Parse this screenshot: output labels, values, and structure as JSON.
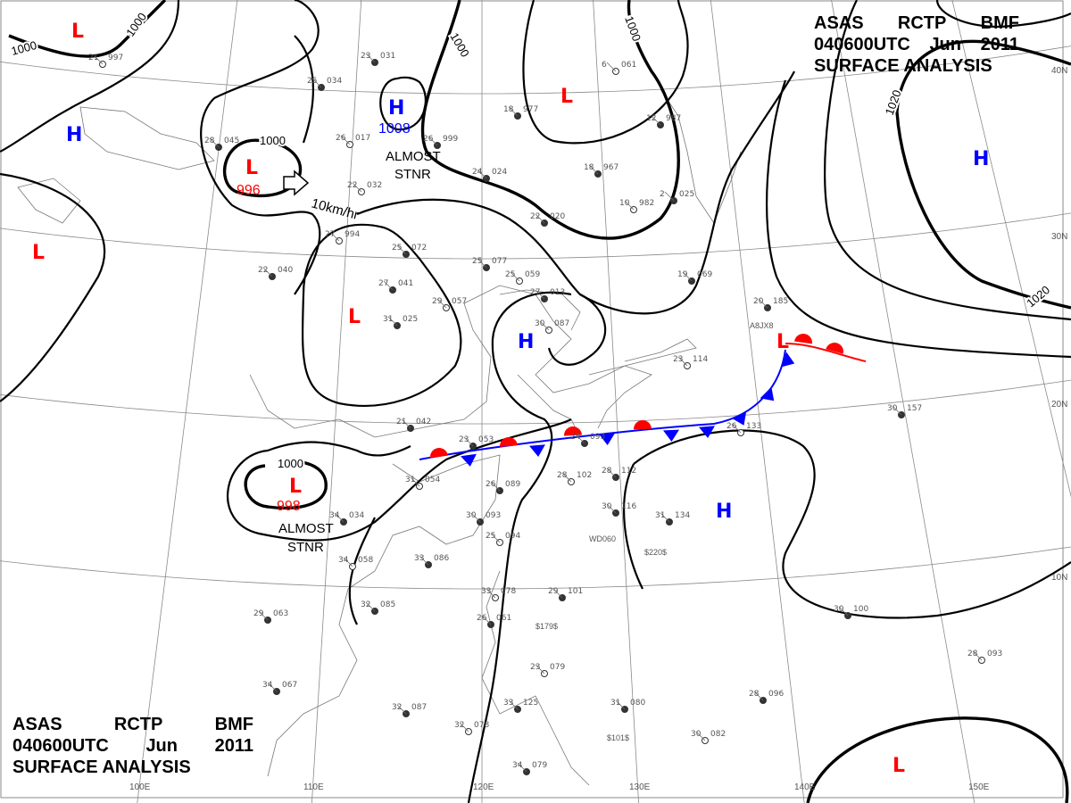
{
  "header": {
    "line1": [
      "ASAS",
      "RCTP",
      "BMF"
    ],
    "line2": [
      "040600UTC",
      "Jun",
      "2011"
    ],
    "line3": "SURFACE ANALYSIS"
  },
  "grid": {
    "latitudes": [
      "10N",
      "20N",
      "30N",
      "40N"
    ],
    "longitudes": [
      "100E",
      "110E",
      "120E",
      "130E",
      "140E",
      "150E"
    ]
  },
  "isobar_labels": [
    "1000",
    "1000",
    "1000",
    "1000",
    "1000",
    "1020",
    "1020"
  ],
  "centers": [
    {
      "type": "L",
      "color": "#ff0000"
    },
    {
      "type": "L",
      "color": "#ff0000",
      "value": "996"
    },
    {
      "type": "H",
      "color": "#0000ff"
    },
    {
      "type": "H",
      "color": "#0000ff",
      "value": "1008"
    },
    {
      "type": "L",
      "color": "#ff0000"
    },
    {
      "type": "L",
      "color": "#ff0000"
    },
    {
      "type": "L",
      "color": "#ff0000"
    },
    {
      "type": "H",
      "color": "#0000ff"
    },
    {
      "type": "H",
      "color": "#0000ff"
    },
    {
      "type": "L",
      "color": "#ff0000",
      "value": "998"
    },
    {
      "type": "L",
      "color": "#ff0000"
    },
    {
      "type": "H",
      "color": "#0000ff"
    },
    {
      "type": "L",
      "color": "#ff0000"
    }
  ],
  "annotations": {
    "almost_stnr_1": [
      "ALMOST",
      "STNR"
    ],
    "almost_stnr_2": [
      "ALMOST",
      "STNR"
    ],
    "motion": "10km/hr"
  },
  "front_colors": {
    "warm": "#ff0000",
    "cold": "#0000ff"
  },
  "special_labels": [
    "$220$",
    "$179$",
    "$101$",
    "WD060",
    "A8JX8"
  ],
  "stations": [
    {
      "t": "21",
      "p": "997"
    },
    {
      "t": "25",
      "p": "034"
    },
    {
      "t": "23",
      "p": "031"
    },
    {
      "t": "26",
      "p": "017"
    },
    {
      "t": "26",
      "p": "999"
    },
    {
      "t": "28",
      "p": "045"
    },
    {
      "t": "22",
      "p": "032"
    },
    {
      "t": "24",
      "p": "024"
    },
    {
      "t": "18",
      "p": "977"
    },
    {
      "t": "6",
      "p": "061"
    },
    {
      "t": "12",
      "p": "987"
    },
    {
      "t": "18",
      "p": "967"
    },
    {
      "t": "10",
      "p": "982"
    },
    {
      "t": "2",
      "p": "025"
    },
    {
      "t": "22",
      "p": "020"
    },
    {
      "t": "27",
      "p": "994"
    },
    {
      "t": "25",
      "p": "072"
    },
    {
      "t": "25",
      "p": "077"
    },
    {
      "t": "25",
      "p": "059"
    },
    {
      "t": "22",
      "p": "040"
    },
    {
      "t": "27",
      "p": "041"
    },
    {
      "t": "29",
      "p": "057"
    },
    {
      "t": "27",
      "p": "013"
    },
    {
      "t": "31",
      "p": "025"
    },
    {
      "t": "30",
      "p": "087"
    },
    {
      "t": "19",
      "p": "069"
    },
    {
      "t": "20",
      "p": "185"
    },
    {
      "t": "23",
      "p": "114"
    },
    {
      "t": "21",
      "p": "042"
    },
    {
      "t": "23",
      "p": "053"
    },
    {
      "t": "31",
      "p": "054"
    },
    {
      "t": "26",
      "p": "089"
    },
    {
      "t": "24",
      "p": "093"
    },
    {
      "t": "28",
      "p": "102"
    },
    {
      "t": "28",
      "p": "112"
    },
    {
      "t": "30",
      "p": "093"
    },
    {
      "t": "25",
      "p": "094"
    },
    {
      "t": "31",
      "p": "134"
    },
    {
      "t": "30",
      "p": "116"
    },
    {
      "t": "26",
      "p": "133"
    },
    {
      "t": "30",
      "p": "157"
    },
    {
      "t": "33",
      "p": "086"
    },
    {
      "t": "34",
      "p": "058"
    },
    {
      "t": "29",
      "p": "063"
    },
    {
      "t": "32",
      "p": "085"
    },
    {
      "t": "33",
      "p": "078"
    },
    {
      "t": "29",
      "p": "101"
    },
    {
      "t": "26",
      "p": "061"
    },
    {
      "t": "23",
      "p": "079"
    },
    {
      "t": "33",
      "p": "125"
    },
    {
      "t": "32",
      "p": "087"
    },
    {
      "t": "32",
      "p": "078"
    },
    {
      "t": "34",
      "p": "067"
    },
    {
      "t": "31",
      "p": "080"
    },
    {
      "t": "30",
      "p": "082"
    },
    {
      "t": "28",
      "p": "096"
    },
    {
      "t": "30",
      "p": "100"
    },
    {
      "t": "28",
      "p": "093"
    },
    {
      "t": "34",
      "p": "079"
    },
    {
      "t": "34",
      "p": "034"
    }
  ]
}
